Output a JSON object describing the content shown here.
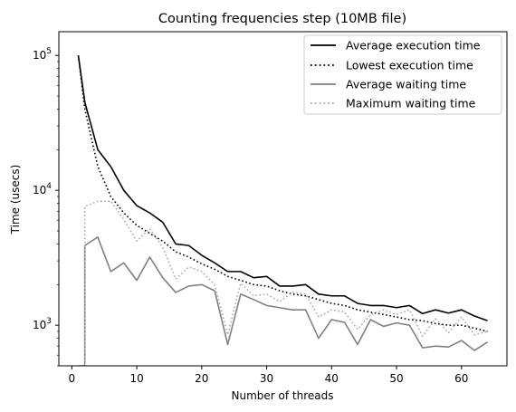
{
  "chart_data": {
    "type": "line",
    "title": "Counting frequencies step (10MB file)",
    "xlabel": "Number of threads",
    "ylabel": "Time (usecs)",
    "xlim": [
      -2,
      67
    ],
    "ylim": [
      500,
      150000
    ],
    "yscale": "log",
    "x_ticks": [
      0,
      10,
      20,
      30,
      40,
      50,
      60
    ],
    "x_tick_labels": [
      "0",
      "10",
      "20",
      "30",
      "40",
      "50",
      "60"
    ],
    "y_ticks": [
      {
        "value": 1000,
        "base": "10",
        "exp": "3"
      },
      {
        "value": 10000,
        "base": "10",
        "exp": "4"
      },
      {
        "value": 100000,
        "base": "10",
        "exp": "5"
      }
    ],
    "grid": false,
    "legend_position": "top-right",
    "series": [
      {
        "name": "Average execution time",
        "color": "#000000",
        "dash": "solid",
        "x": [
          1,
          2,
          4,
          6,
          8,
          10,
          12,
          14,
          16,
          18,
          20,
          22,
          24,
          26,
          28,
          30,
          32,
          34,
          36,
          38,
          40,
          42,
          44,
          46,
          48,
          50,
          52,
          54,
          56,
          58,
          60,
          62,
          64
        ],
        "y": [
          100000,
          45000,
          20000,
          15000,
          10000,
          7700,
          6800,
          5800,
          4000,
          3900,
          3300,
          2900,
          2500,
          2500,
          2250,
          2300,
          1950,
          1950,
          2000,
          1700,
          1650,
          1650,
          1450,
          1400,
          1400,
          1350,
          1400,
          1220,
          1300,
          1230,
          1300,
          1170,
          1080
        ]
      },
      {
        "name": "Lowest execution time",
        "color": "#000000",
        "dash": "dotted",
        "x": [
          1,
          2,
          4,
          6,
          8,
          10,
          12,
          14,
          16,
          18,
          20,
          22,
          24,
          26,
          28,
          30,
          32,
          34,
          36,
          38,
          40,
          42,
          44,
          46,
          48,
          50,
          52,
          54,
          56,
          58,
          60,
          62,
          64
        ],
        "y": [
          100000,
          40000,
          15000,
          9000,
          6800,
          5500,
          4800,
          4200,
          3500,
          3200,
          2850,
          2600,
          2300,
          2150,
          2000,
          1950,
          1800,
          1700,
          1650,
          1550,
          1450,
          1400,
          1300,
          1250,
          1200,
          1150,
          1100,
          1080,
          1030,
          1000,
          1000,
          950,
          900
        ]
      },
      {
        "name": "Average waiting time",
        "color": "#808080",
        "dash": "solid",
        "x": [
          1,
          2,
          2,
          4,
          6,
          8,
          10,
          12,
          14,
          16,
          18,
          20,
          22,
          24,
          26,
          28,
          30,
          32,
          34,
          36,
          38,
          40,
          42,
          44,
          46,
          48,
          50,
          52,
          54,
          56,
          58,
          60,
          62,
          64
        ],
        "y": [
          500,
          500,
          3900,
          4500,
          2500,
          2900,
          2150,
          3200,
          2250,
          1750,
          1950,
          2000,
          1800,
          720,
          1700,
          1550,
          1400,
          1350,
          1300,
          1300,
          800,
          1100,
          1050,
          720,
          1100,
          980,
          1040,
          1000,
          680,
          700,
          690,
          770,
          650,
          750
        ]
      },
      {
        "name": "Maximum waiting time",
        "color": "#aaaaaa",
        "dash": "dotted",
        "x": [
          1,
          2,
          2,
          4,
          6,
          8,
          10,
          12,
          14,
          16,
          18,
          20,
          22,
          24,
          26,
          28,
          30,
          32,
          34,
          36,
          38,
          40,
          42,
          44,
          46,
          48,
          50,
          52,
          54,
          56,
          58,
          60,
          62,
          64
        ],
        "y": [
          500,
          500,
          7600,
          8300,
          8300,
          6100,
          4200,
          5200,
          3800,
          2200,
          2700,
          2500,
          2000,
          850,
          2050,
          1650,
          1700,
          1500,
          1750,
          1700,
          1150,
          1300,
          1250,
          930,
          1200,
          1300,
          1200,
          1300,
          830,
          1120,
          880,
          1150,
          850,
          900
        ]
      }
    ]
  }
}
